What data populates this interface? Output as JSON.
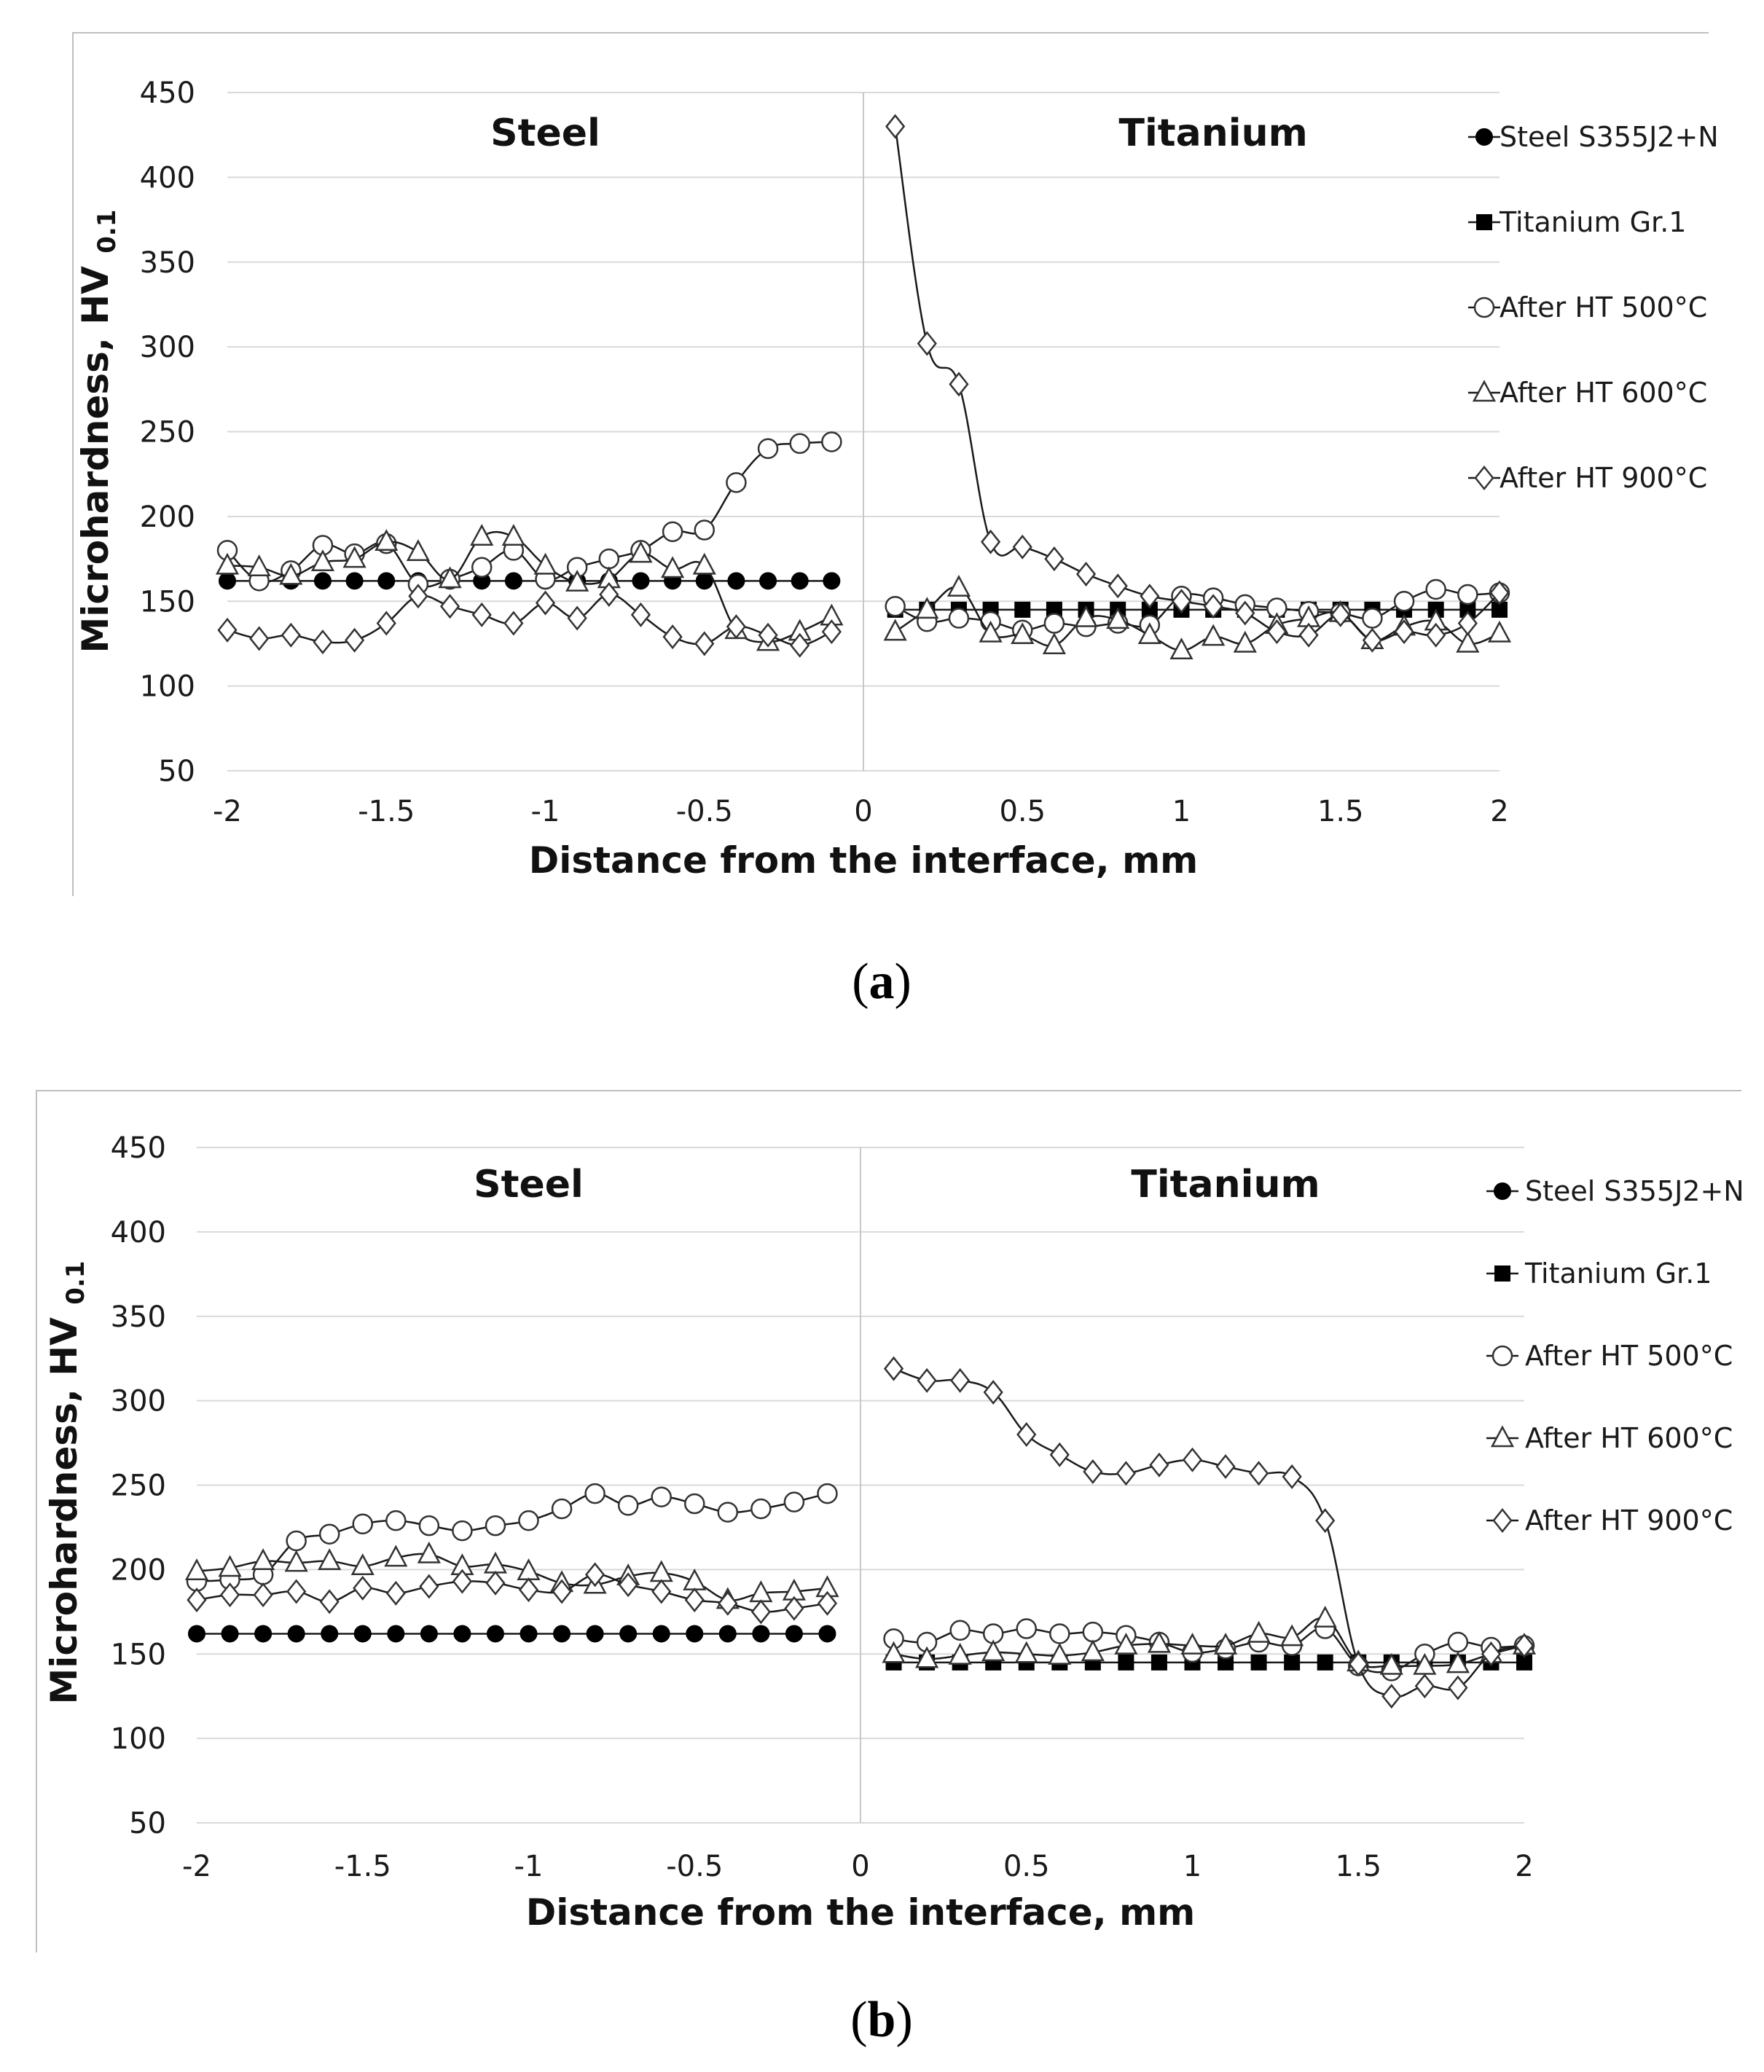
{
  "colors": {
    "line": "#1a1a1a",
    "grid": "#d9d9d9",
    "frame": "#bfbfbf",
    "fill_open": "#ffffff"
  },
  "legend": [
    {
      "name": "Steel S355J2+N",
      "marker": "circle-filled"
    },
    {
      "name": "Titanium Gr.1",
      "marker": "square-filled"
    },
    {
      "name": "After HT 500°C",
      "marker": "circle-open"
    },
    {
      "name": "After HT 600°C",
      "marker": "triangle-open"
    },
    {
      "name": "After HT 900°C",
      "marker": "diamond-open"
    }
  ],
  "chart_data": [
    {
      "type": "line",
      "panel": "a",
      "xlabel": "Distance from the interface, mm",
      "ylabel_main": "Microhardness, HV",
      "ylabel_sub": "0.1",
      "xlim": [
        -2,
        2
      ],
      "ylim": [
        50,
        450
      ],
      "xticks": [
        -2,
        -1.5,
        -1,
        -0.5,
        0,
        0.5,
        1,
        1.5,
        2
      ],
      "yticks": [
        50,
        100,
        150,
        200,
        250,
        300,
        350,
        400,
        450
      ],
      "xtick_labels": [
        "-2",
        "-1.5",
        "-1",
        "-0.5",
        "0",
        "0.5",
        "1",
        "1.5",
        "2"
      ],
      "ytick_labels": [
        "50",
        "100",
        "150",
        "200",
        "250",
        "300",
        "350",
        "400",
        "450"
      ],
      "region_labels": [
        "Steel",
        "Titanium"
      ],
      "grid": true,
      "legend_position": "right",
      "series": [
        {
          "name": "Steel S355J2+N",
          "marker": "circle-filled",
          "x": [
            -2,
            -1.9,
            -1.8,
            -1.7,
            -1.6,
            -1.5,
            -1.4,
            -1.3,
            -1.2,
            -1.1,
            -1,
            -0.9,
            -0.8,
            -0.7,
            -0.6,
            -0.5,
            -0.4,
            -0.3,
            -0.2,
            -0.1
          ],
          "y": [
            162,
            162,
            162,
            162,
            162,
            162,
            162,
            162,
            162,
            162,
            162,
            162,
            162,
            162,
            162,
            162,
            162,
            162,
            162,
            162
          ]
        },
        {
          "name": "Titanium Gr.1",
          "marker": "square-filled",
          "x": [
            0.1,
            0.2,
            0.3,
            0.4,
            0.5,
            0.6,
            0.7,
            0.8,
            0.9,
            1,
            1.1,
            1.2,
            1.3,
            1.4,
            1.5,
            1.6,
            1.7,
            1.8,
            1.9,
            2
          ],
          "y": [
            145,
            145,
            145,
            145,
            145,
            145,
            145,
            145,
            145,
            145,
            145,
            145,
            145,
            145,
            145,
            145,
            145,
            145,
            145,
            145
          ]
        },
        {
          "name": "After HT 500°C",
          "marker": "circle-open",
          "x": [
            -2,
            -1.9,
            -1.8,
            -1.7,
            -1.6,
            -1.5,
            -1.4,
            -1.3,
            -1.2,
            -1.1,
            -1,
            -0.9,
            -0.8,
            -0.7,
            -0.6,
            -0.5,
            -0.4,
            -0.3,
            -0.2,
            -0.1
          ],
          "y": [
            180,
            162,
            168,
            183,
            178,
            184,
            160,
            163,
            170,
            180,
            163,
            170,
            175,
            180,
            191,
            192,
            220,
            240,
            243,
            244
          ],
          "x2": [
            0.1,
            0.2,
            0.3,
            0.4,
            0.5,
            0.6,
            0.7,
            0.8,
            0.9,
            1,
            1.1,
            1.2,
            1.3,
            1.4,
            1.5,
            1.6,
            1.7,
            1.8,
            1.9,
            2
          ],
          "y2": [
            147,
            138,
            140,
            138,
            133,
            137,
            135,
            137,
            136,
            153,
            152,
            148,
            146,
            144,
            143,
            140,
            150,
            157,
            154,
            155
          ]
        },
        {
          "name": "After HT 600°C",
          "marker": "triangle-open",
          "x": [
            -2,
            -1.9,
            -1.8,
            -1.7,
            -1.6,
            -1.5,
            -1.4,
            -1.3,
            -1.2,
            -1.1,
            -1,
            -0.9,
            -0.8,
            -0.7,
            -0.6,
            -0.5,
            -0.4,
            -0.3,
            -0.2,
            -0.1
          ],
          "y": [
            171,
            170,
            165,
            173,
            175,
            185,
            179,
            163,
            188,
            188,
            171,
            161,
            163,
            178,
            169,
            171,
            133,
            126,
            132,
            141
          ],
          "x2": [
            0.1,
            0.2,
            0.3,
            0.4,
            0.5,
            0.6,
            0.7,
            0.8,
            0.9,
            1,
            1.1,
            1.2,
            1.3,
            1.4,
            1.5,
            1.6,
            1.7,
            1.8,
            1.9,
            2
          ],
          "y2": [
            132,
            145,
            158,
            131,
            130,
            124,
            140,
            139,
            130,
            121,
            129,
            125,
            136,
            140,
            143,
            127,
            135,
            138,
            125,
            131
          ]
        },
        {
          "name": "After HT 900°C",
          "marker": "diamond-open",
          "x": [
            -2,
            -1.9,
            -1.8,
            -1.7,
            -1.6,
            -1.5,
            -1.4,
            -1.3,
            -1.2,
            -1.1,
            -1,
            -0.9,
            -0.8,
            -0.7,
            -0.6,
            -0.5,
            -0.4,
            -0.3,
            -0.2,
            -0.1
          ],
          "y": [
            133,
            128,
            130,
            126,
            127,
            137,
            153,
            147,
            142,
            137,
            149,
            140,
            154,
            142,
            129,
            125,
            135,
            130,
            124,
            132
          ],
          "x2": [
            0.1,
            0.2,
            0.3,
            0.4,
            0.5,
            0.6,
            0.7,
            0.8,
            0.9,
            1,
            1.1,
            1.2,
            1.3,
            1.4,
            1.5,
            1.6,
            1.7,
            1.8,
            1.9,
            2
          ],
          "y2": [
            430,
            302,
            278,
            185,
            182,
            175,
            166,
            159,
            153,
            150,
            147,
            143,
            132,
            130,
            142,
            127,
            132,
            130,
            137,
            155
          ]
        }
      ]
    },
    {
      "type": "line",
      "panel": "b",
      "xlabel": "Distance from the interface, mm",
      "ylabel_main": "Microhardness, HV",
      "ylabel_sub": "0.1",
      "xlim": [
        -2,
        2
      ],
      "ylim": [
        50,
        450
      ],
      "xticks": [
        -2,
        -1.5,
        -1,
        -0.5,
        0,
        0.5,
        1,
        1.5,
        2
      ],
      "yticks": [
        50,
        100,
        150,
        200,
        250,
        300,
        350,
        400,
        450
      ],
      "xtick_labels": [
        "-2",
        "-1.5",
        "-1",
        "-0.5",
        "0",
        "0.5",
        "1",
        "1.5",
        "2"
      ],
      "ytick_labels": [
        "50",
        "100",
        "150",
        "200",
        "250",
        "300",
        "350",
        "400",
        "450"
      ],
      "region_labels": [
        "Steel",
        "Titanium"
      ],
      "grid": true,
      "legend_position": "right",
      "series": [
        {
          "name": "Steel S355J2+N",
          "marker": "circle-filled",
          "x": [
            -2,
            -1.9,
            -1.8,
            -1.7,
            -1.6,
            -1.5,
            -1.4,
            -1.3,
            -1.2,
            -1.1,
            -1,
            -0.9,
            -0.8,
            -0.7,
            -0.6,
            -0.5,
            -0.4,
            -0.3,
            -0.2,
            -0.1
          ],
          "y": [
            162,
            162,
            162,
            162,
            162,
            162,
            162,
            162,
            162,
            162,
            162,
            162,
            162,
            162,
            162,
            162,
            162,
            162,
            162,
            162
          ]
        },
        {
          "name": "Titanium Gr.1",
          "marker": "square-filled",
          "x": [
            0.1,
            0.2,
            0.3,
            0.4,
            0.5,
            0.6,
            0.7,
            0.8,
            0.9,
            1,
            1.1,
            1.2,
            1.3,
            1.4,
            1.5,
            1.6,
            1.7,
            1.8,
            1.9,
            2
          ],
          "y": [
            145,
            145,
            145,
            145,
            145,
            145,
            145,
            145,
            145,
            145,
            145,
            145,
            145,
            145,
            145,
            145,
            145,
            145,
            145,
            145
          ]
        },
        {
          "name": "After HT 500°C",
          "marker": "circle-open",
          "x": [
            -2,
            -1.9,
            -1.8,
            -1.7,
            -1.6,
            -1.5,
            -1.4,
            -1.3,
            -1.2,
            -1.1,
            -1,
            -0.9,
            -0.8,
            -0.7,
            -0.6,
            -0.5,
            -0.4,
            -0.3,
            -0.2,
            -0.1
          ],
          "y": [
            193,
            194,
            197,
            217,
            221,
            227,
            229,
            226,
            223,
            226,
            229,
            236,
            245,
            238,
            243,
            239,
            234,
            236,
            240,
            245
          ],
          "x2": [
            0.1,
            0.2,
            0.3,
            0.4,
            0.5,
            0.6,
            0.7,
            0.8,
            0.9,
            1,
            1.1,
            1.2,
            1.3,
            1.4,
            1.5,
            1.6,
            1.7,
            1.8,
            1.9,
            2
          ],
          "y2": [
            159,
            157,
            164,
            162,
            165,
            162,
            163,
            161,
            157,
            151,
            153,
            157,
            155,
            165,
            143,
            140,
            150,
            157,
            154,
            155
          ]
        },
        {
          "name": "After HT 600°C",
          "marker": "triangle-open",
          "x": [
            -2,
            -1.9,
            -1.8,
            -1.7,
            -1.6,
            -1.5,
            -1.4,
            -1.3,
            -1.2,
            -1.1,
            -1,
            -0.9,
            -0.8,
            -0.7,
            -0.6,
            -0.5,
            -0.4,
            -0.3,
            -0.2,
            -0.1
          ],
          "y": [
            199,
            201,
            205,
            204,
            205,
            202,
            207,
            209,
            202,
            203,
            199,
            192,
            191,
            196,
            198,
            193,
            182,
            186,
            187,
            189
          ],
          "x2": [
            0.1,
            0.2,
            0.3,
            0.4,
            0.5,
            0.6,
            0.7,
            0.8,
            0.9,
            1,
            1.1,
            1.2,
            1.3,
            1.4,
            1.5,
            1.6,
            1.7,
            1.8,
            1.9,
            2
          ],
          "y2": [
            150,
            147,
            149,
            151,
            150,
            149,
            151,
            155,
            156,
            155,
            155,
            162,
            160,
            171,
            145,
            143,
            143,
            144,
            150,
            155
          ]
        },
        {
          "name": "After HT 900°C",
          "marker": "diamond-open",
          "x": [
            -2,
            -1.9,
            -1.8,
            -1.7,
            -1.6,
            -1.5,
            -1.4,
            -1.3,
            -1.2,
            -1.1,
            -1,
            -0.9,
            -0.8,
            -0.7,
            -0.6,
            -0.5,
            -0.4,
            -0.3,
            -0.2,
            -0.1
          ],
          "y": [
            182,
            185,
            185,
            187,
            181,
            189,
            186,
            190,
            193,
            192,
            188,
            187,
            197,
            191,
            187,
            182,
            180,
            175,
            177,
            180
          ],
          "x2": [
            0.1,
            0.2,
            0.3,
            0.4,
            0.5,
            0.6,
            0.7,
            0.8,
            0.9,
            1,
            1.1,
            1.2,
            1.3,
            1.4,
            1.5,
            1.6,
            1.7,
            1.8,
            1.9,
            2
          ],
          "y2": [
            319,
            312,
            312,
            305,
            280,
            268,
            258,
            257,
            262,
            265,
            261,
            257,
            255,
            229,
            144,
            125,
            131,
            130,
            150,
            155
          ]
        }
      ]
    }
  ],
  "captions": [
    "a",
    "b"
  ]
}
